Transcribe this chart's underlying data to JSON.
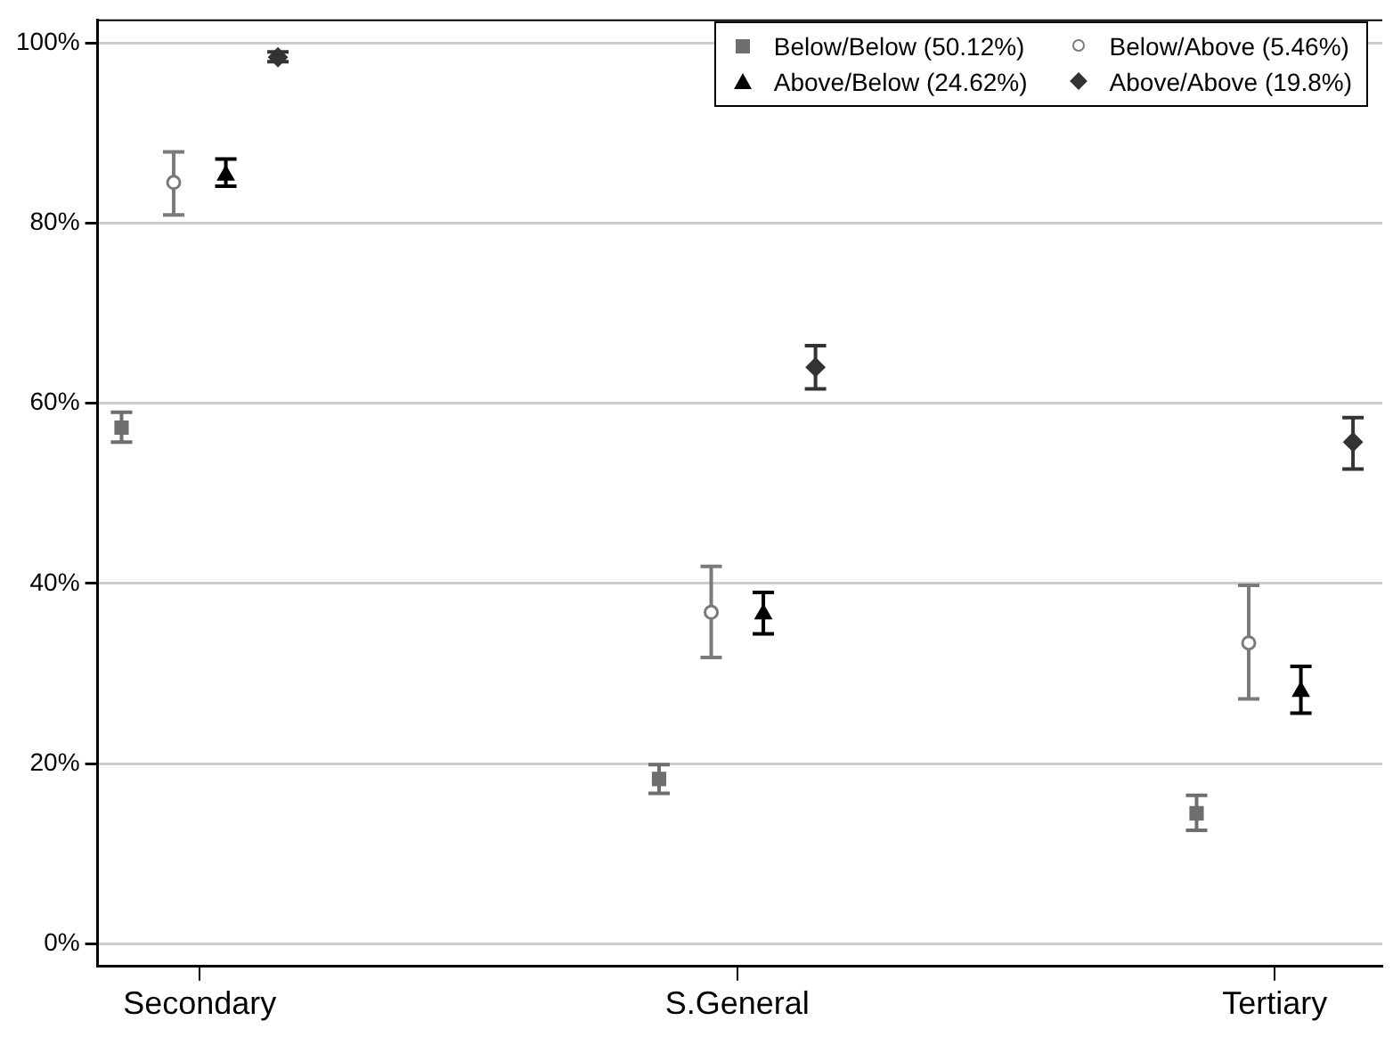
{
  "chart_data": {
    "type": "scatter",
    "categories": [
      "Secondary",
      "S.General",
      "Tertiary"
    ],
    "ylim": [
      -2.5,
      102.5
    ],
    "yticks": [
      {
        "value": 0,
        "label": "0%"
      },
      {
        "value": 20,
        "label": "20%"
      },
      {
        "value": 40,
        "label": "40%"
      },
      {
        "value": 60,
        "label": "60%"
      },
      {
        "value": 80,
        "label": "80%"
      },
      {
        "value": 100,
        "label": "100%"
      }
    ],
    "grid": "y",
    "legend": "top right",
    "series": [
      {
        "name": "Below/Below (50.12%)",
        "color": "#6e6e6e",
        "marker": "square",
        "values": [
          57.3,
          18.3,
          14.5
        ],
        "errors": [
          [
            55.7,
            59.0
          ],
          [
            16.7,
            19.9
          ],
          [
            12.6,
            16.5
          ]
        ]
      },
      {
        "name": "Below/Above (5.46%)",
        "color": "#7a7a7a",
        "marker": "circle",
        "values": [
          84.5,
          36.8,
          33.4
        ],
        "errors": [
          [
            80.9,
            87.9
          ],
          [
            31.8,
            41.9
          ],
          [
            27.2,
            39.8
          ]
        ]
      },
      {
        "name": "Above/Below (24.62%)",
        "color": "#000000",
        "marker": "triangle",
        "values": [
          85.3,
          36.6,
          28.0
        ],
        "errors": [
          [
            84.1,
            87.1
          ],
          [
            34.4,
            39.0
          ],
          [
            25.6,
            30.8
          ]
        ]
      },
      {
        "name": "Above/Above (19.8%)",
        "color": "#333333",
        "marker": "diamond",
        "values": [
          98.4,
          64.0,
          55.7
        ],
        "errors": [
          [
            97.9,
            99.0
          ],
          [
            61.6,
            66.4
          ],
          [
            52.7,
            58.4
          ]
        ]
      }
    ]
  }
}
